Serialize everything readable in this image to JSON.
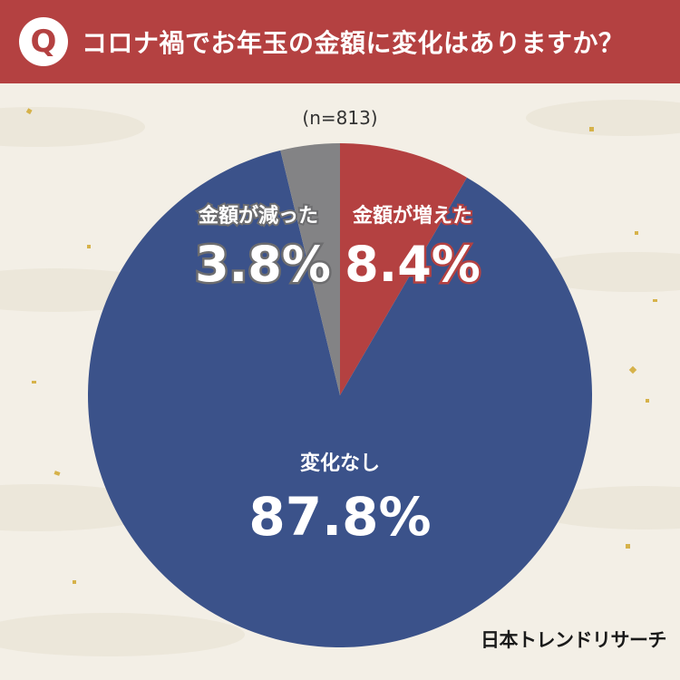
{
  "header": {
    "badge": "Q",
    "question": "コロナ禍でお年玉の金額に変化はありますか？"
  },
  "sample_note": "(n=813)",
  "brand": "日本トレンドリサーチ",
  "colors": {
    "header": "#b44141",
    "increased": "#b44141",
    "decreased": "#838385",
    "no_change": "#3b528a"
  },
  "chart_data": {
    "type": "pie",
    "title": "コロナ禍でお年玉の金額に変化はありますか？",
    "note": "(n=813)",
    "start": "12 o'clock, clockwise",
    "slices": [
      {
        "label": "金額が増えた",
        "value": 8.4,
        "display": "8.4%",
        "color": "#b44141"
      },
      {
        "label": "変化なし",
        "value": 87.8,
        "display": "87.8%",
        "color": "#3b528a"
      },
      {
        "label": "金額が減った",
        "value": 3.8,
        "display": "3.8%",
        "color": "#838385"
      }
    ]
  }
}
